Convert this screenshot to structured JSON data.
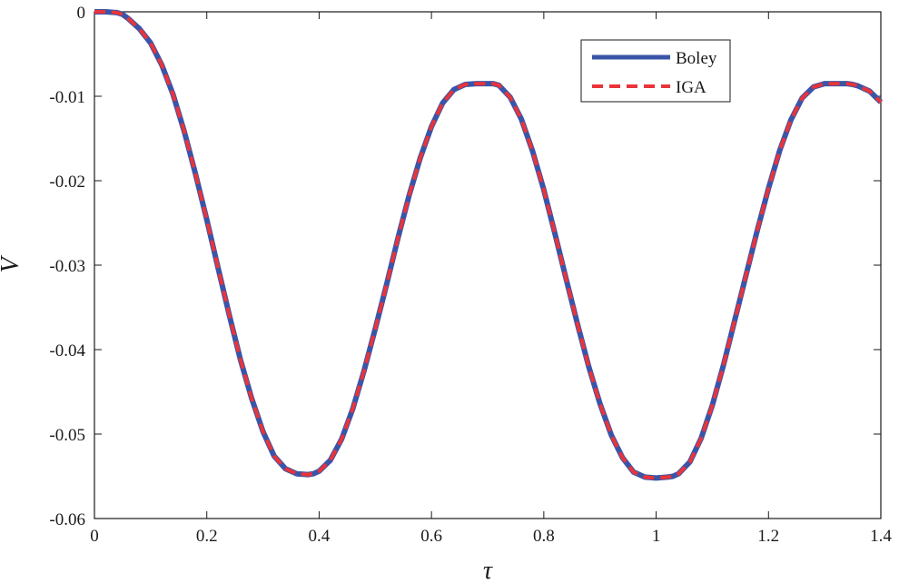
{
  "chart_data": {
    "type": "line",
    "xlabel": "τ",
    "ylabel": "V",
    "xlim": [
      0,
      1.4
    ],
    "ylim": [
      -0.06,
      0
    ],
    "xticks": [
      0,
      0.2,
      0.4,
      0.6,
      0.8,
      1,
      1.2,
      1.4
    ],
    "xtick_labels": [
      "0",
      "0.2",
      "0.4",
      "0.6",
      "0.8",
      "1",
      "1.2",
      "1.4"
    ],
    "yticks": [
      0,
      -0.01,
      -0.02,
      -0.03,
      -0.04,
      -0.05,
      -0.06
    ],
    "ytick_labels": [
      "0",
      "-0.01",
      "-0.02",
      "-0.03",
      "-0.04",
      "-0.05",
      "-0.06"
    ],
    "grid": false,
    "legend_position": "top-right",
    "series": [
      {
        "name": "Boley",
        "color": "#3a55a8",
        "style": "solid",
        "x": [
          0,
          0.02,
          0.04,
          0.05,
          0.06,
          0.08,
          0.1,
          0.12,
          0.14,
          0.16,
          0.18,
          0.2,
          0.22,
          0.24,
          0.26,
          0.28,
          0.3,
          0.32,
          0.34,
          0.36,
          0.38,
          0.39,
          0.4,
          0.42,
          0.44,
          0.46,
          0.48,
          0.5,
          0.52,
          0.54,
          0.56,
          0.58,
          0.6,
          0.62,
          0.64,
          0.66,
          0.68,
          0.7,
          0.71,
          0.72,
          0.74,
          0.76,
          0.78,
          0.8,
          0.82,
          0.84,
          0.86,
          0.88,
          0.9,
          0.92,
          0.94,
          0.96,
          0.98,
          1.0,
          1.02,
          1.03,
          1.04,
          1.06,
          1.08,
          1.1,
          1.12,
          1.14,
          1.16,
          1.18,
          1.2,
          1.22,
          1.24,
          1.26,
          1.28,
          1.3,
          1.32,
          1.34,
          1.35,
          1.36,
          1.38,
          1.4
        ],
        "y": [
          0,
          0,
          -0.0001,
          -0.0003,
          -0.0008,
          -0.002,
          -0.0037,
          -0.0063,
          -0.0098,
          -0.0142,
          -0.0192,
          -0.0246,
          -0.0303,
          -0.0359,
          -0.0412,
          -0.0458,
          -0.0497,
          -0.0526,
          -0.0541,
          -0.0547,
          -0.0548,
          -0.0547,
          -0.0544,
          -0.0531,
          -0.0506,
          -0.047,
          -0.0425,
          -0.0375,
          -0.0323,
          -0.0269,
          -0.0218,
          -0.0173,
          -0.0136,
          -0.0108,
          -0.0092,
          -0.0086,
          -0.0085,
          -0.0085,
          -0.0085,
          -0.0087,
          -0.0101,
          -0.0127,
          -0.0165,
          -0.0211,
          -0.0263,
          -0.0317,
          -0.037,
          -0.042,
          -0.0464,
          -0.0501,
          -0.0528,
          -0.0545,
          -0.0551,
          -0.0552,
          -0.0551,
          -0.055,
          -0.0547,
          -0.0533,
          -0.0505,
          -0.0466,
          -0.0418,
          -0.0365,
          -0.0312,
          -0.0259,
          -0.0209,
          -0.0164,
          -0.0128,
          -0.0102,
          -0.0089,
          -0.0085,
          -0.0085,
          -0.0085,
          -0.0086,
          -0.0088,
          -0.0094,
          -0.0107
        ]
      },
      {
        "name": "IGA",
        "color": "#e8343a",
        "style": "dashed",
        "x": [
          0,
          0.02,
          0.04,
          0.05,
          0.06,
          0.08,
          0.1,
          0.12,
          0.14,
          0.16,
          0.18,
          0.2,
          0.22,
          0.24,
          0.26,
          0.28,
          0.3,
          0.32,
          0.34,
          0.36,
          0.38,
          0.39,
          0.4,
          0.42,
          0.44,
          0.46,
          0.48,
          0.5,
          0.52,
          0.54,
          0.56,
          0.58,
          0.6,
          0.62,
          0.64,
          0.66,
          0.68,
          0.7,
          0.71,
          0.72,
          0.74,
          0.76,
          0.78,
          0.8,
          0.82,
          0.84,
          0.86,
          0.88,
          0.9,
          0.92,
          0.94,
          0.96,
          0.98,
          1.0,
          1.02,
          1.03,
          1.04,
          1.06,
          1.08,
          1.1,
          1.12,
          1.14,
          1.16,
          1.18,
          1.2,
          1.22,
          1.24,
          1.26,
          1.28,
          1.3,
          1.32,
          1.34,
          1.35,
          1.36,
          1.38,
          1.4
        ],
        "y": [
          0,
          0,
          -0.0001,
          -0.0003,
          -0.0008,
          -0.002,
          -0.0037,
          -0.0063,
          -0.0098,
          -0.0142,
          -0.0192,
          -0.0246,
          -0.0303,
          -0.0359,
          -0.0412,
          -0.0458,
          -0.0497,
          -0.0526,
          -0.0541,
          -0.0547,
          -0.0548,
          -0.0547,
          -0.0544,
          -0.0531,
          -0.0506,
          -0.047,
          -0.0425,
          -0.0375,
          -0.0323,
          -0.0269,
          -0.0218,
          -0.0173,
          -0.0136,
          -0.0108,
          -0.0092,
          -0.0086,
          -0.0085,
          -0.0085,
          -0.0085,
          -0.0087,
          -0.0101,
          -0.0127,
          -0.0165,
          -0.0211,
          -0.0263,
          -0.0317,
          -0.037,
          -0.042,
          -0.0464,
          -0.0501,
          -0.0528,
          -0.0545,
          -0.0551,
          -0.0552,
          -0.0551,
          -0.055,
          -0.0547,
          -0.0533,
          -0.0505,
          -0.0466,
          -0.0418,
          -0.0365,
          -0.0312,
          -0.0259,
          -0.0209,
          -0.0164,
          -0.0128,
          -0.0102,
          -0.0089,
          -0.0085,
          -0.0085,
          -0.0085,
          -0.0086,
          -0.0088,
          -0.0094,
          -0.0107
        ]
      }
    ]
  }
}
